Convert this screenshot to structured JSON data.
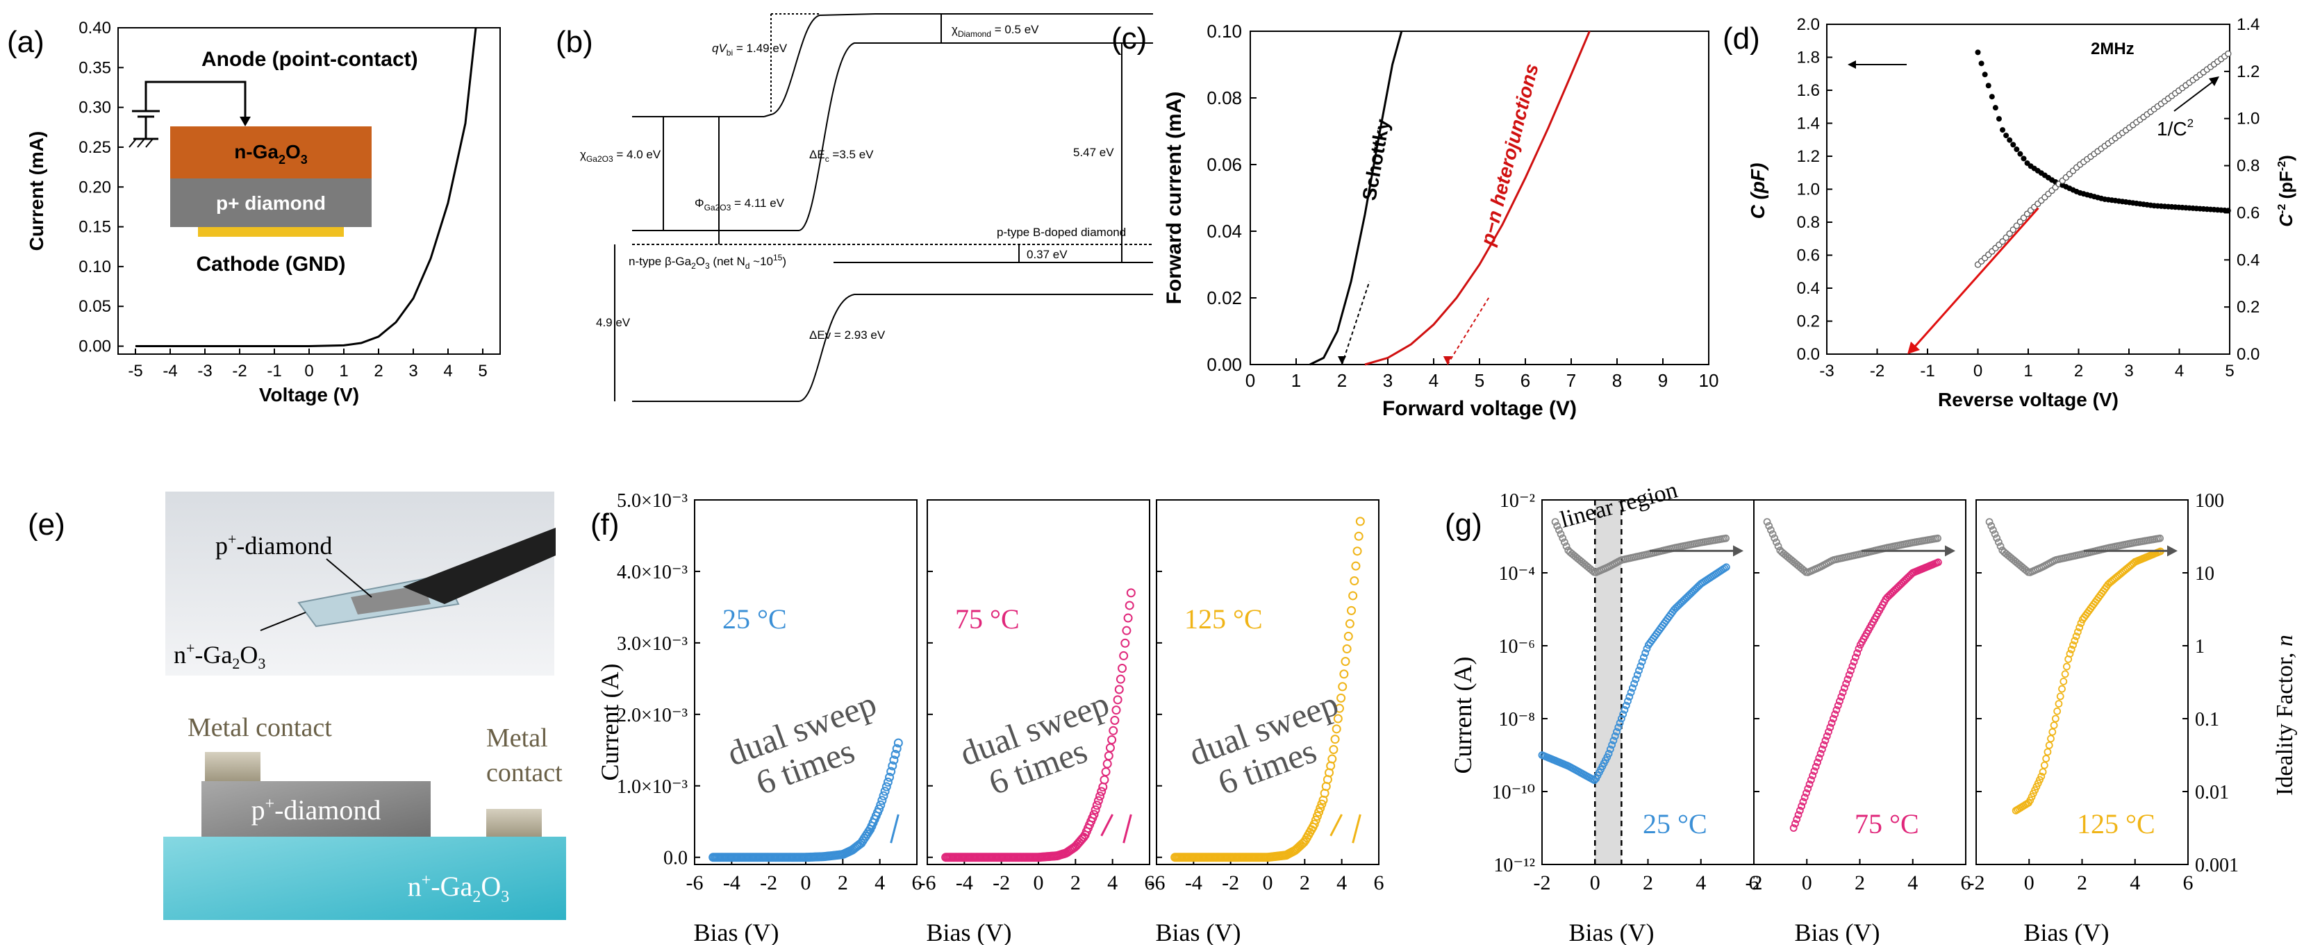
{
  "panel_labels": {
    "a": "(a)",
    "b": "(b)",
    "c": "(c)",
    "d": "(d)",
    "e": "(e)",
    "f": "(f)",
    "g": "(g)"
  },
  "chart_data": [
    {
      "panel": "a",
      "type": "line",
      "xlabel": "Voltage (V)",
      "ylabel": "Current (mA)",
      "xlim": [
        -5.5,
        5.5
      ],
      "ylim": [
        -0.01,
        0.4
      ],
      "xticks": [
        -5,
        -4,
        -3,
        -2,
        -1,
        0,
        1,
        2,
        3,
        4,
        5
      ],
      "yticks": [
        0.0,
        0.05,
        0.1,
        0.15,
        0.2,
        0.25,
        0.3,
        0.35,
        0.4
      ],
      "x": [
        -5,
        0,
        1.0,
        1.5,
        2.0,
        2.5,
        3.0,
        3.5,
        4.0,
        4.5,
        4.8
      ],
      "y": [
        0,
        0,
        0.001,
        0.004,
        0.012,
        0.03,
        0.06,
        0.11,
        0.18,
        0.28,
        0.4
      ],
      "color": "#000000",
      "inset": {
        "anode": "Anode (point-contact)",
        "layer_top": "n-Ga",
        "layer_top_sub": "2",
        "layer_top_end": "O",
        "layer_top_end_sub": "3",
        "layer_bottom": "p+ diamond",
        "cathode": "Cathode (GND)",
        "color_top": "#c8601c",
        "color_bottom": "#7b7b7b",
        "color_cathode": "#f0c020"
      }
    },
    {
      "panel": "b",
      "type": "diagram",
      "labels": {
        "qvbi_pre": "qV",
        "qvbi_sub": "bi",
        "qvbi_val": " = 1.49 eV",
        "chi_dia_pre": "χ",
        "chi_dia_sub": "Diamond",
        "chi_dia_val": " = 0.5 eV",
        "chi_ga_pre": "χ",
        "chi_ga_sub": "Ga2O3",
        "chi_ga_val": " = 4.0 eV",
        "dec_pre": "ΔE",
        "dec_sub": "c",
        "dec_val": " =3.5 eV",
        "phi_pre": "Φ",
        "phi_sub": "Ga2O3",
        "phi_val": " = 4.11 eV",
        "v547": "5.47 eV",
        "ptype": "p-type B-doped diamond",
        "ntype": "n-type β-Ga",
        "ntype_sub1": "2",
        "ntype_mid": "O",
        "ntype_sub2": "3",
        "ntype_end": " (net N",
        "ntype_sub3": "d",
        "ntype_end2": " ~10",
        "ntype_sup": "15",
        "ntype_close": ")",
        "v037": "0.37 eV",
        "v49": "4.9 eV",
        "dev": "ΔEv = 2.93 eV"
      }
    },
    {
      "panel": "c",
      "type": "line",
      "xlabel": "Forward voltage (V)",
      "ylabel": "Forward current (mA)",
      "xlim": [
        0,
        10
      ],
      "ylim": [
        0,
        0.1
      ],
      "xticks": [
        0,
        1,
        2,
        3,
        4,
        5,
        6,
        7,
        8,
        9,
        10
      ],
      "yticks": [
        0.0,
        0.02,
        0.04,
        0.06,
        0.08,
        0.1
      ],
      "series": [
        {
          "name": "Schottky",
          "color": "#000000",
          "x": [
            1.3,
            1.6,
            1.9,
            2.2,
            2.5,
            2.8,
            3.1,
            3.3
          ],
          "y": [
            0,
            0.002,
            0.01,
            0.025,
            0.045,
            0.068,
            0.09,
            0.1
          ]
        },
        {
          "name": "p−n heterojunctions",
          "color": "#d01010",
          "x": [
            2.5,
            3.0,
            3.5,
            4.0,
            4.5,
            5.0,
            5.5,
            6.0,
            6.5,
            7.0,
            7.4
          ],
          "y": [
            0,
            0.002,
            0.006,
            0.012,
            0.02,
            0.03,
            0.042,
            0.056,
            0.071,
            0.087,
            0.1
          ]
        }
      ],
      "extrapolations": [
        {
          "from": [
            2.0,
            0.0
          ],
          "to": [
            2.6,
            0.025
          ]
        },
        {
          "from": [
            4.3,
            0.0
          ],
          "to": [
            5.2,
            0.02
          ]
        }
      ]
    },
    {
      "panel": "d",
      "type": "scatter",
      "xlabel": "Reverse voltage (V)",
      "ylabel": "C (pF)",
      "y2label": "C",
      "y2label_sup": "-2",
      "y2label_unit": " (pF",
      "y2label_unit_sup": "-2",
      "y2label_close": ")",
      "xlim": [
        -3,
        5
      ],
      "ylim": [
        0,
        2.0
      ],
      "y2lim": [
        0,
        1.4
      ],
      "xticks": [
        -3,
        -2,
        -1,
        0,
        1,
        2,
        3,
        4,
        5
      ],
      "yticks": [
        0.0,
        0.2,
        0.4,
        0.6,
        0.8,
        1.0,
        1.2,
        1.4,
        1.6,
        1.8,
        2.0
      ],
      "y2ticks": [
        0.0,
        0.2,
        0.4,
        0.6,
        0.8,
        1.0,
        1.2,
        1.4
      ],
      "annotation": "2MHz",
      "inv_label": "1/C",
      "inv_label_sup": "2",
      "series": [
        {
          "name": "C",
          "marker": "filled",
          "x": [
            0,
            0.5,
            1,
            1.5,
            2,
            2.5,
            3,
            3.5,
            4,
            4.5,
            5
          ],
          "y": [
            1.83,
            1.35,
            1.15,
            1.05,
            0.98,
            0.94,
            0.92,
            0.9,
            0.89,
            0.88,
            0.87
          ]
        },
        {
          "name": "1/C^2",
          "marker": "open",
          "axis": "right",
          "x": [
            0,
            0.5,
            1,
            1.5,
            2,
            2.5,
            3,
            3.5,
            4,
            4.5,
            5
          ],
          "y": [
            0.38,
            0.48,
            0.6,
            0.7,
            0.8,
            0.88,
            0.96,
            1.04,
            1.12,
            1.2,
            1.28
          ]
        }
      ],
      "fit_line": {
        "from": [
          -1.4,
          0.0
        ],
        "to": [
          1.2,
          0.62
        ],
        "color": "#e01010"
      }
    },
    {
      "panel": "e",
      "type": "diagram",
      "photo_top": "p",
      "photo_top_sup": "+",
      "photo_top_end": "-diamond",
      "photo_bot": "n",
      "photo_bot_sup": "+",
      "photo_bot_mid": "-Ga",
      "photo_bot_sub1": "2",
      "photo_bot_O": "O",
      "photo_bot_sub2": "3",
      "metal1": "Metal contact",
      "metal2": "Metal",
      "metal2b": "contact",
      "diamond": "p",
      "diamond_sup": "+",
      "diamond_end": "-diamond",
      "gao": "n",
      "gao_sup": "+",
      "gao_mid": "-Ga",
      "gao_sub1": "2",
      "gao_O": "O",
      "gao_sub2": "3"
    },
    {
      "panel": "f",
      "type": "scatter",
      "xlabel": "Bias (V)",
      "ylabel": "Current (A)",
      "xlim": [
        -6,
        6
      ],
      "ylim": [
        -0.0001,
        0.005
      ],
      "xticks": [
        -6,
        -4,
        -2,
        0,
        2,
        4,
        6
      ],
      "yticks": [
        0,
        0.001,
        0.002,
        0.003,
        0.004,
        0.005
      ],
      "yticklabels": [
        "0.0",
        "1.0×10⁻³",
        "2.0×10⁻³",
        "3.0×10⁻³",
        "4.0×10⁻³",
        "5.0×10⁻³"
      ],
      "note_line1": "dual sweep",
      "note_line2": "6 times",
      "series": [
        {
          "name": "25 °C",
          "color": "#3a8fd6",
          "x": [
            -5,
            0,
            1,
            2,
            2.5,
            3,
            3.5,
            4,
            4.5,
            5
          ],
          "y": [
            0,
            0,
            1e-05,
            4e-05,
            0.0001,
            0.0002,
            0.0004,
            0.0007,
            0.0011,
            0.0016
          ]
        },
        {
          "name": "75 °C",
          "color": "#e0267a",
          "x": [
            -5,
            0,
            1,
            1.5,
            2,
            2.5,
            3,
            3.5,
            4,
            4.5,
            5
          ],
          "y": [
            0,
            0,
            2e-05,
            6e-05,
            0.00015,
            0.0003,
            0.0006,
            0.001,
            0.0017,
            0.0026,
            0.0037
          ]
        },
        {
          "name": "125 °C",
          "color": "#f0b416",
          "x": [
            -5,
            0,
            1,
            1.5,
            2,
            2.5,
            3,
            3.5,
            4,
            4.5,
            5
          ],
          "y": [
            0,
            0,
            3e-05,
            0.0001,
            0.00022,
            0.00045,
            0.0008,
            0.0014,
            0.0023,
            0.0034,
            0.0047
          ]
        }
      ]
    },
    {
      "panel": "g",
      "type": "scatter",
      "xlabel": "Bias (V)",
      "ylabel": "Current (A)",
      "y2label": "Ideality Factor, ",
      "y2label_italic": "n",
      "yscale": "log",
      "y2scale": "log",
      "xlim": [
        -2,
        6
      ],
      "ylim": [
        1e-12,
        0.01
      ],
      "y2lim": [
        0.001,
        100
      ],
      "xticks": [
        -2,
        0,
        2,
        4,
        6
      ],
      "yticklabels": [
        "10⁻¹²",
        "10⁻¹⁰",
        "10⁻⁸",
        "10⁻⁶",
        "10⁻⁴",
        "10⁻²"
      ],
      "y2ticklabels": [
        "0.001",
        "0.01",
        "0.1",
        "1",
        "10",
        "100"
      ],
      "annotation": "linear region",
      "series": [
        {
          "name": "25 °C",
          "color": "#3a8fd6",
          "x": [
            -2,
            -1,
            0,
            0.5,
            1,
            1.5,
            2,
            3,
            4,
            5
          ],
          "y": [
            1e-09,
            5e-10,
            2e-10,
            1e-09,
            1e-08,
            1e-07,
            1e-06,
            1e-05,
            5e-05,
            0.00015
          ]
        },
        {
          "name": "75 °C",
          "color": "#e0267a",
          "x": [
            -0.5,
            0,
            0.5,
            1,
            1.5,
            2,
            3,
            4,
            5
          ],
          "y": [
            1e-11,
            1e-10,
            1e-09,
            1e-08,
            1e-07,
            1e-06,
            2e-05,
            0.0001,
            0.0002
          ]
        },
        {
          "name": "125 °C",
          "color": "#f0b416",
          "x": [
            -0.5,
            0,
            0.5,
            1,
            1.5,
            2,
            3,
            4,
            5
          ],
          "y": [
            3e-11,
            5e-11,
            3e-10,
            1e-08,
            5e-07,
            5e-06,
            5e-05,
            0.0002,
            0.0004
          ]
        },
        {
          "name": "ideality",
          "color": "#888888",
          "axis": "right",
          "x": [
            -1.5,
            -1,
            0,
            0.5,
            1,
            2,
            3,
            4,
            5
          ],
          "y": [
            50,
            20,
            10,
            12,
            15,
            18,
            22,
            26,
            30
          ]
        }
      ]
    }
  ]
}
